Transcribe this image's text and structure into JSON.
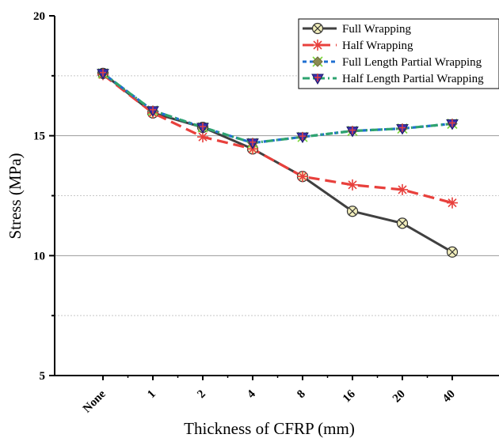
{
  "chart_data": {
    "type": "line",
    "categories": [
      "None",
      "1",
      "2",
      "4",
      "8",
      "16",
      "20",
      "40"
    ],
    "xlabel": "Thickness of CFRP (mm)",
    "ylabel": "Stress (MPa)",
    "ylim": [
      5,
      20
    ],
    "yticks": [
      "5",
      "10",
      "15",
      "20"
    ],
    "grid": "horizontal",
    "legend_position": "top-right",
    "series": [
      {
        "name": "Full Wrapping",
        "values": [
          17.6,
          15.95,
          15.35,
          14.45,
          13.3,
          11.85,
          11.35,
          10.15
        ],
        "color": "#404040",
        "line": "solid",
        "marker": "circle-x",
        "marker_fill": "#f2eebc"
      },
      {
        "name": "Half Wrapping",
        "values": [
          17.55,
          15.95,
          14.95,
          14.45,
          13.3,
          12.95,
          12.75,
          12.2
        ],
        "color": "#e8403c",
        "line": "long-dash",
        "marker": "asterisk",
        "marker_fill": "#e8403c"
      },
      {
        "name": "Full Length Partial Wrapping",
        "values": [
          17.6,
          16.05,
          15.35,
          14.7,
          14.95,
          15.2,
          15.3,
          15.5
        ],
        "color": "#1f6fd1",
        "line": "short-dash",
        "marker": "diamond",
        "marker_fill": "#8a8a52"
      },
      {
        "name": "Half Length Partial Wrapping",
        "values": [
          17.6,
          16.05,
          15.35,
          14.7,
          14.95,
          15.2,
          15.3,
          15.5
        ],
        "color": "#2ea36f",
        "line": "dash-dot",
        "marker": "triangle-down-cross",
        "marker_fill": "#3a2fb0"
      }
    ]
  }
}
